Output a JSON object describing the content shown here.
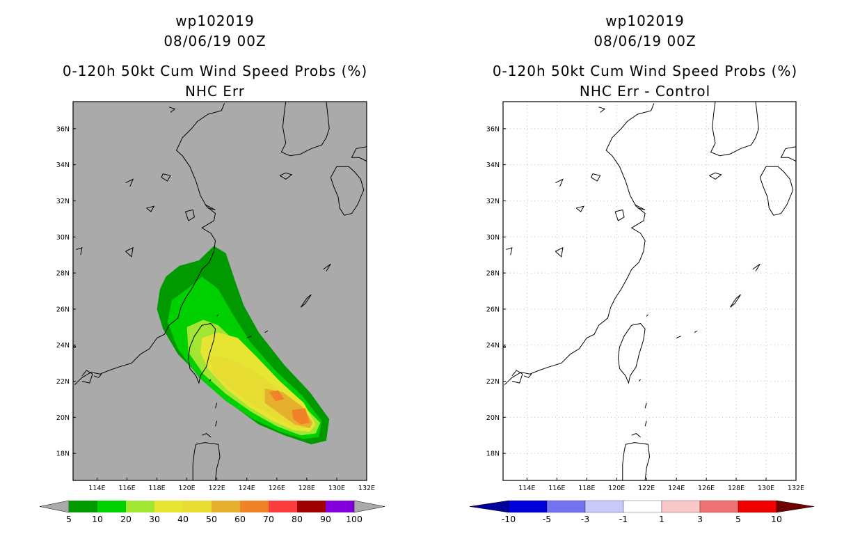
{
  "colors": {
    "background": "#aaaaaa",
    "coast": "#000000",
    "grid_dots": "#bfbfbf"
  },
  "left_panel": {
    "title_line1": "wp102019",
    "title_line2": "08/06/19 00Z",
    "title_line3": "0-120h 50kt Cum Wind Speed Probs (%)",
    "title_line4": "NHC Err",
    "colorbar": {
      "colors": [
        "#009a00",
        "#00d000",
        "#a0e632",
        "#e6e632",
        "#e6dc32",
        "#e6af2d",
        "#f08228",
        "#fa3c3c",
        "#a00000",
        "#8200dc"
      ],
      "ends": "#aaaaaa",
      "labels": [
        "5",
        "10",
        "20",
        "30",
        "40",
        "50",
        "60",
        "70",
        "80",
        "90",
        "100"
      ]
    }
  },
  "right_panel": {
    "title_line1": "wp102019",
    "title_line2": "08/06/19 00Z",
    "title_line3": "0-120h 50kt Cum Wind Speed Probs (%)",
    "title_line4": "NHC Err - Control",
    "colorbar": {
      "colors": [
        "#0000dc",
        "#7373f0",
        "#c8c8fa",
        "#ffffff",
        "#fac8c8",
        "#f07373",
        "#f00000"
      ],
      "end_low": "#00009b",
      "end_high": "#6e0000",
      "labels": [
        "-10",
        "-5",
        "-3",
        "-1",
        "1",
        "3",
        "5",
        "10"
      ]
    }
  },
  "map": {
    "lon_labels": [
      "114E",
      "116E",
      "118E",
      "120E",
      "122E",
      "124E",
      "126E",
      "128E",
      "130E",
      "132E"
    ],
    "lat_labels": [
      "36N",
      "34N",
      "32N",
      "30N",
      "28N",
      "26N",
      "24N",
      "22N",
      "20N",
      "18N"
    ]
  },
  "chart_data": {
    "type": "heatmap",
    "lon_range": [
      112.4,
      132
    ],
    "lat_range": [
      16.5,
      37.5
    ],
    "contour_levels": [
      5,
      10,
      20,
      30,
      40,
      50,
      60
    ],
    "contours": [
      {
        "level": 5,
        "color": "#009a00",
        "points": [
          [
            118.6,
            27.8
          ],
          [
            119.5,
            28.4
          ],
          [
            120.8,
            28.7
          ],
          [
            121.8,
            29.5
          ],
          [
            122.6,
            29.1
          ],
          [
            123.2,
            27.6
          ],
          [
            123.8,
            26.2
          ],
          [
            124.8,
            24.7
          ],
          [
            126.5,
            22.9
          ],
          [
            128.2,
            21.4
          ],
          [
            129.5,
            19.9
          ],
          [
            129.3,
            18.7
          ],
          [
            128.3,
            18.5
          ],
          [
            126.5,
            19.0
          ],
          [
            124.8,
            19.6
          ],
          [
            123.0,
            20.7
          ],
          [
            121.2,
            22.0
          ],
          [
            119.4,
            23.5
          ],
          [
            118.4,
            24.9
          ],
          [
            118.0,
            26.0
          ],
          [
            118.2,
            27.1
          ]
        ]
      },
      {
        "level": 10,
        "color": "#00d000",
        "points": [
          [
            119.0,
            26.5
          ],
          [
            120.0,
            27.1
          ],
          [
            121.0,
            27.8
          ],
          [
            122.1,
            27.1
          ],
          [
            123.0,
            25.8
          ],
          [
            124.2,
            24.2
          ],
          [
            125.9,
            22.6
          ],
          [
            127.7,
            21.2
          ],
          [
            129.0,
            19.8
          ],
          [
            128.8,
            18.9
          ],
          [
            127.8,
            18.8
          ],
          [
            126.2,
            19.2
          ],
          [
            124.4,
            19.9
          ],
          [
            122.6,
            20.9
          ],
          [
            120.8,
            22.2
          ],
          [
            119.4,
            23.8
          ],
          [
            118.7,
            25.3
          ]
        ]
      },
      {
        "level": 20,
        "color": "#a0e632",
        "points": [
          [
            120.0,
            25.0
          ],
          [
            121.1,
            25.4
          ],
          [
            122.1,
            25.1
          ],
          [
            123.1,
            24.3
          ],
          [
            124.4,
            23.1
          ],
          [
            126.1,
            21.8
          ],
          [
            127.8,
            20.6
          ],
          [
            128.9,
            19.7
          ],
          [
            128.6,
            19.1
          ],
          [
            127.6,
            19.0
          ],
          [
            126.0,
            19.5
          ],
          [
            124.3,
            20.3
          ],
          [
            122.6,
            21.3
          ],
          [
            121.1,
            22.4
          ],
          [
            120.1,
            23.6
          ]
        ]
      },
      {
        "level": 30,
        "color": "#e6e632",
        "points": [
          [
            121.0,
            24.4
          ],
          [
            122.1,
            24.7
          ],
          [
            123.4,
            24.4
          ],
          [
            124.6,
            23.4
          ],
          [
            126.2,
            22.0
          ],
          [
            127.8,
            20.8
          ],
          [
            128.6,
            19.6
          ],
          [
            128.2,
            19.2
          ],
          [
            127.1,
            19.3
          ],
          [
            125.7,
            19.8
          ],
          [
            124.1,
            20.6
          ],
          [
            122.6,
            21.6
          ],
          [
            121.4,
            22.7
          ],
          [
            120.9,
            23.6
          ]
        ]
      },
      {
        "level": 40,
        "color": "#e6dc32",
        "points": [
          [
            121.5,
            23.3
          ],
          [
            122.2,
            23.4
          ],
          [
            123.6,
            23.0
          ],
          [
            125.1,
            22.2
          ],
          [
            126.7,
            21.1
          ],
          [
            128.2,
            20.0
          ],
          [
            128.3,
            19.4
          ],
          [
            127.4,
            19.4
          ],
          [
            126.0,
            19.9
          ],
          [
            124.4,
            20.7
          ],
          [
            122.9,
            21.6
          ],
          [
            121.8,
            22.4
          ]
        ]
      },
      {
        "level": 50,
        "color": "#e6af2d",
        "points": [
          [
            125.2,
            21.6
          ],
          [
            126.4,
            21.4
          ],
          [
            127.7,
            20.6
          ],
          [
            128.4,
            19.7
          ],
          [
            128.2,
            19.4
          ],
          [
            127.2,
            19.6
          ],
          [
            126.2,
            20.2
          ],
          [
            125.2,
            20.8
          ]
        ]
      },
      {
        "level": 60,
        "color": "#f08228",
        "points": [
          [
            125.5,
            21.4
          ],
          [
            126.1,
            21.5
          ],
          [
            126.5,
            21.0
          ],
          [
            125.9,
            20.9
          ]
        ]
      },
      {
        "level": 60,
        "color": "#f08228",
        "points": [
          [
            127.0,
            20.4
          ],
          [
            127.9,
            20.5
          ],
          [
            128.2,
            19.7
          ],
          [
            127.6,
            19.6
          ],
          [
            127.1,
            19.9
          ]
        ]
      }
    ]
  }
}
